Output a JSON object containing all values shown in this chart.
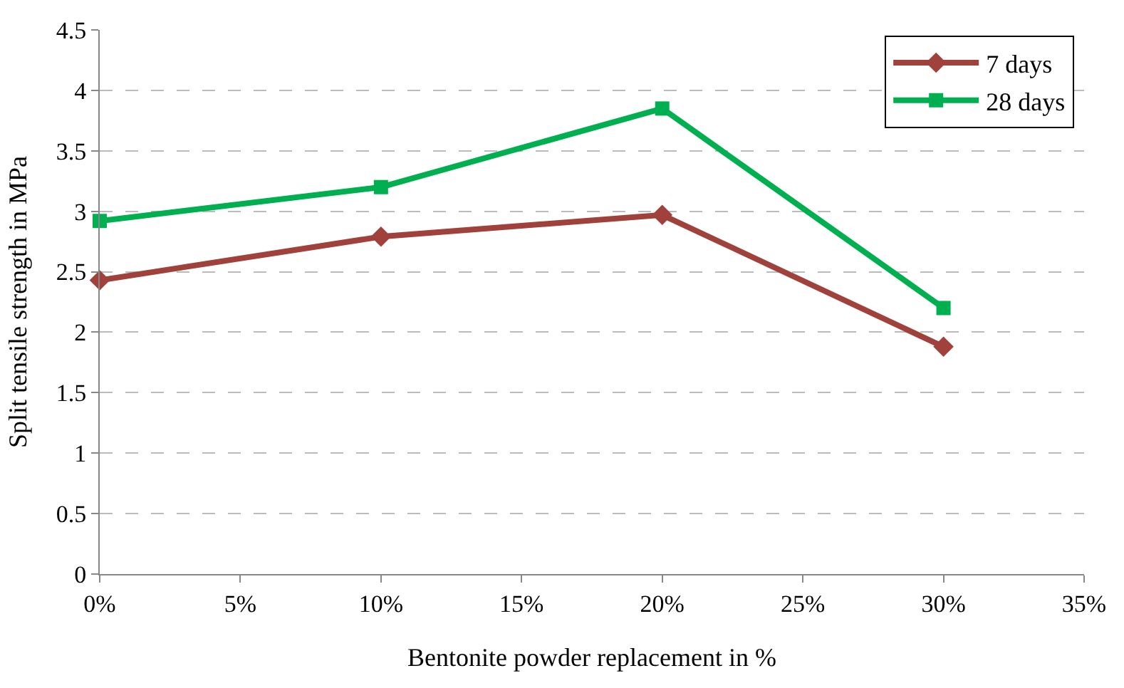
{
  "chart_data": {
    "type": "line",
    "xlabel": "Bentonite powder replacement in %",
    "ylabel": "Split tensile strength in MPa",
    "x": [
      0,
      10,
      20,
      30
    ],
    "series": [
      {
        "name": "7 days",
        "color": "#a0413c",
        "marker": "diamond",
        "values": [
          2.43,
          2.79,
          2.97,
          1.88
        ]
      },
      {
        "name": "28 days",
        "color": "#00b050",
        "marker": "square",
        "values": [
          2.92,
          3.2,
          3.85,
          2.2
        ]
      }
    ],
    "xlim": [
      0,
      35
    ],
    "xticks": [
      {
        "value": 0,
        "label": "0%"
      },
      {
        "value": 5,
        "label": "5%"
      },
      {
        "value": 10,
        "label": "10%"
      },
      {
        "value": 15,
        "label": "15%"
      },
      {
        "value": 20,
        "label": "20%"
      },
      {
        "value": 25,
        "label": "25%"
      },
      {
        "value": 30,
        "label": "30%"
      },
      {
        "value": 35,
        "label": "35%"
      }
    ],
    "ylim": [
      0,
      4.5
    ],
    "yticks": [
      0,
      0.5,
      1,
      1.5,
      2,
      2.5,
      3,
      3.5,
      4,
      4.5
    ],
    "grid": "y",
    "legend": "top right",
    "line_style": "solid"
  }
}
